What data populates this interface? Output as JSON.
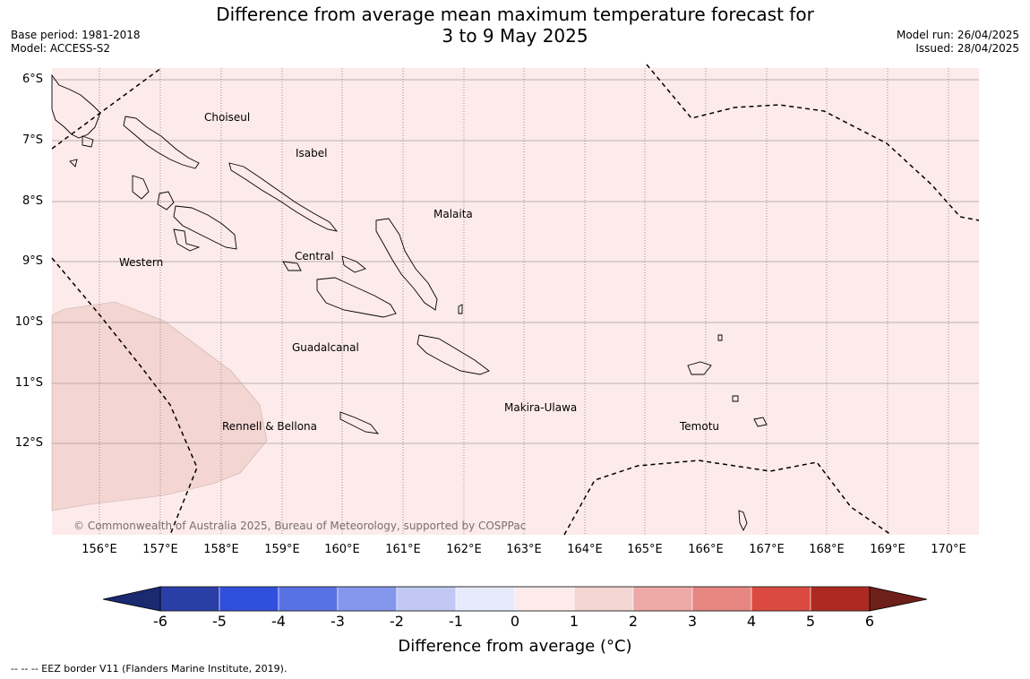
{
  "title": {
    "line1": "Difference from average mean maximum temperature forecast for",
    "line2": "3 to 9 May 2025"
  },
  "meta_left": {
    "base_period": "Base period: 1981-2018",
    "model": "Model: ACCESS-S2"
  },
  "meta_right": {
    "model_run": "Model run: 26/04/2025",
    "issued": "Issued: 28/04/2025"
  },
  "lat_labels": [
    "6°S",
    "7°S",
    "8°S",
    "9°S",
    "10°S",
    "11°S",
    "12°S"
  ],
  "lon_labels": [
    "156°E",
    "157°E",
    "158°E",
    "159°E",
    "160°E",
    "161°E",
    "162°E",
    "163°E",
    "164°E",
    "165°E",
    "166°E",
    "167°E",
    "168°E",
    "169°E",
    "170°E"
  ],
  "places": {
    "choiseul": "Choiseul",
    "isabel": "Isabel",
    "malaita": "Malaita",
    "western": "Western",
    "central": "Central",
    "guadalcanal": "Guadalcanal",
    "rennell": "Rennell & Bellona",
    "makira": "Makira-Ulawa",
    "temotu": "Temotu"
  },
  "copyright": "© Commonwealth of Australia 2025, Bureau of Meteorology, supported by COSPPac",
  "colorbar": {
    "ticks": [
      "-6",
      "-5",
      "-4",
      "-3",
      "-2",
      "-1",
      "0",
      "1",
      "2",
      "3",
      "4",
      "5",
      "6"
    ],
    "colors": [
      "#2a3ea8",
      "#2f4fdd",
      "#5872e4",
      "#8497ec",
      "#c0c8f3",
      "#e7eafb",
      "#fcebea",
      "#f3d5d2",
      "#eda9a6",
      "#e78680",
      "#db4a40",
      "#ad2a22"
    ],
    "under_color": "#1a2970",
    "over_color": "#6e1f1a",
    "label": "Difference from average (°C)"
  },
  "map_colors": {
    "band_0_1": "#fcebea",
    "band_1_2": "#f3d5d2"
  },
  "eez_note": "--  --  -- EEZ border V11 (Flanders Marine Institute, 2019)."
}
